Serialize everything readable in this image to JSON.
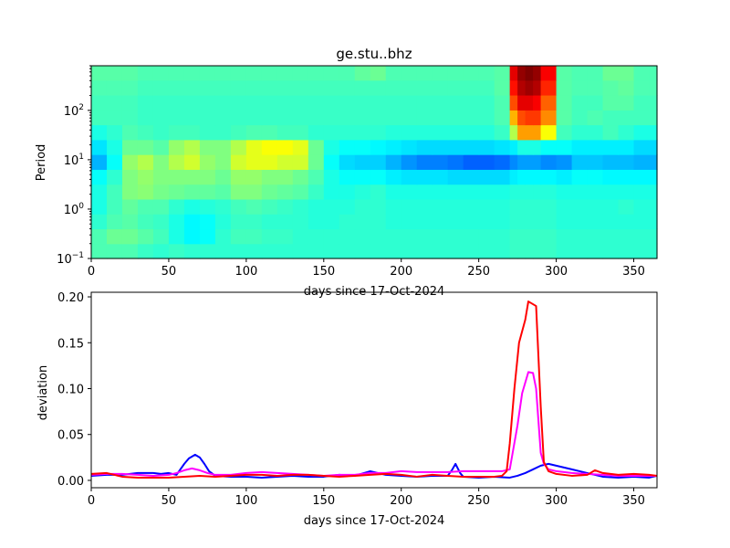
{
  "figure": {
    "title": "ge.stu..bhz",
    "colors": {
      "background": "#ffffff",
      "axis": "#000000"
    }
  },
  "chart_data": [
    {
      "type": "heatmap",
      "title": "ge.stu..bhz",
      "xlabel": "days since 17-Oct-2024",
      "ylabel": "Period",
      "xlim": [
        0,
        365
      ],
      "ylim": [
        0.1,
        800
      ],
      "yscale": "log",
      "colormap": "jet",
      "grid": false,
      "x_ticks": [
        0,
        50,
        100,
        150,
        200,
        250,
        300,
        350
      ],
      "x_tick_labels": [
        "0",
        "50",
        "100",
        "150",
        "200",
        "250",
        "300",
        "350"
      ],
      "y_ticks": [
        0.1,
        1,
        10,
        100
      ],
      "y_tick_labels": [
        {
          "base": "10",
          "exp": "−1"
        },
        {
          "base": "10",
          "exp": "0"
        },
        {
          "base": "10",
          "exp": "1"
        },
        {
          "base": "10",
          "exp": "2"
        }
      ],
      "x_days": [
        0,
        10,
        20,
        30,
        40,
        50,
        60,
        70,
        80,
        90,
        100,
        110,
        120,
        130,
        140,
        150,
        160,
        170,
        180,
        190,
        200,
        210,
        220,
        230,
        240,
        250,
        260,
        270,
        275,
        280,
        285,
        290,
        300,
        310,
        320,
        330,
        340,
        350,
        360,
        365
      ],
      "period_bins": [
        0.1,
        0.2,
        0.4,
        0.8,
        1.6,
        3.2,
        6.4,
        12.8,
        25.6,
        51.2,
        102,
        205,
        410,
        800
      ],
      "values": [
        [
          0.45,
          0.45,
          0.45,
          0.43,
          0.42,
          0.43,
          0.42,
          0.42,
          0.42,
          0.42,
          0.42,
          0.42,
          0.42,
          0.42,
          0.42,
          0.42,
          0.42,
          0.42,
          0.42,
          0.42,
          0.42,
          0.42,
          0.42,
          0.42,
          0.42,
          0.42,
          0.42,
          0.43,
          0.43,
          0.43,
          0.43,
          0.43,
          0.42,
          0.42,
          0.42,
          0.42,
          0.42,
          0.42,
          0.42,
          0.42
        ],
        [
          0.45,
          0.48,
          0.48,
          0.46,
          0.44,
          0.4,
          0.37,
          0.38,
          0.42,
          0.44,
          0.44,
          0.43,
          0.43,
          0.42,
          0.42,
          0.42,
          0.42,
          0.42,
          0.42,
          0.42,
          0.42,
          0.42,
          0.42,
          0.42,
          0.42,
          0.42,
          0.42,
          0.43,
          0.43,
          0.43,
          0.43,
          0.43,
          0.42,
          0.42,
          0.42,
          0.42,
          0.42,
          0.42,
          0.42,
          0.42
        ],
        [
          0.42,
          0.45,
          0.46,
          0.44,
          0.43,
          0.4,
          0.37,
          0.38,
          0.41,
          0.43,
          0.43,
          0.42,
          0.42,
          0.42,
          0.41,
          0.41,
          0.42,
          0.42,
          0.42,
          0.41,
          0.41,
          0.41,
          0.41,
          0.41,
          0.41,
          0.41,
          0.41,
          0.42,
          0.42,
          0.42,
          0.42,
          0.42,
          0.41,
          0.41,
          0.41,
          0.41,
          0.41,
          0.41,
          0.41,
          0.41
        ],
        [
          0.4,
          0.44,
          0.47,
          0.45,
          0.45,
          0.42,
          0.4,
          0.41,
          0.42,
          0.44,
          0.45,
          0.44,
          0.43,
          0.42,
          0.41,
          0.41,
          0.41,
          0.42,
          0.42,
          0.41,
          0.41,
          0.41,
          0.41,
          0.41,
          0.41,
          0.41,
          0.41,
          0.42,
          0.42,
          0.42,
          0.42,
          0.42,
          0.41,
          0.41,
          0.41,
          0.41,
          0.42,
          0.41,
          0.41,
          0.41
        ],
        [
          0.4,
          0.44,
          0.5,
          0.51,
          0.49,
          0.48,
          0.47,
          0.47,
          0.46,
          0.5,
          0.5,
          0.48,
          0.47,
          0.46,
          0.43,
          0.4,
          0.4,
          0.41,
          0.42,
          0.4,
          0.4,
          0.4,
          0.4,
          0.4,
          0.4,
          0.4,
          0.4,
          0.41,
          0.41,
          0.41,
          0.41,
          0.41,
          0.4,
          0.4,
          0.4,
          0.4,
          0.4,
          0.4,
          0.4,
          0.4
        ],
        [
          0.38,
          0.42,
          0.5,
          0.52,
          0.5,
          0.5,
          0.5,
          0.5,
          0.48,
          0.52,
          0.52,
          0.5,
          0.5,
          0.48,
          0.45,
          0.4,
          0.38,
          0.38,
          0.38,
          0.36,
          0.35,
          0.35,
          0.35,
          0.34,
          0.34,
          0.34,
          0.34,
          0.36,
          0.37,
          0.37,
          0.37,
          0.37,
          0.36,
          0.38,
          0.38,
          0.37,
          0.37,
          0.37,
          0.37,
          0.37
        ],
        [
          0.3,
          0.38,
          0.52,
          0.55,
          0.5,
          0.55,
          0.58,
          0.52,
          0.5,
          0.58,
          0.6,
          0.6,
          0.58,
          0.58,
          0.48,
          0.38,
          0.34,
          0.33,
          0.33,
          0.3,
          0.27,
          0.25,
          0.25,
          0.24,
          0.22,
          0.22,
          0.23,
          0.26,
          0.28,
          0.28,
          0.28,
          0.26,
          0.27,
          0.32,
          0.32,
          0.31,
          0.31,
          0.3,
          0.3,
          0.3
        ],
        [
          0.35,
          0.4,
          0.48,
          0.48,
          0.46,
          0.52,
          0.55,
          0.5,
          0.5,
          0.55,
          0.6,
          0.62,
          0.62,
          0.6,
          0.48,
          0.4,
          0.38,
          0.38,
          0.37,
          0.36,
          0.35,
          0.34,
          0.34,
          0.34,
          0.34,
          0.34,
          0.35,
          0.36,
          0.4,
          0.4,
          0.4,
          0.38,
          0.38,
          0.36,
          0.36,
          0.36,
          0.36,
          0.34,
          0.34,
          0.35
        ],
        [
          0.4,
          0.42,
          0.45,
          0.44,
          0.43,
          0.44,
          0.44,
          0.43,
          0.43,
          0.44,
          0.45,
          0.45,
          0.44,
          0.44,
          0.42,
          0.42,
          0.42,
          0.42,
          0.42,
          0.41,
          0.41,
          0.41,
          0.41,
          0.41,
          0.41,
          0.41,
          0.43,
          0.55,
          0.72,
          0.72,
          0.72,
          0.62,
          0.44,
          0.42,
          0.42,
          0.44,
          0.42,
          0.4,
          0.4,
          0.4
        ],
        [
          0.44,
          0.44,
          0.44,
          0.43,
          0.43,
          0.43,
          0.43,
          0.43,
          0.43,
          0.43,
          0.43,
          0.43,
          0.43,
          0.43,
          0.43,
          0.43,
          0.43,
          0.43,
          0.43,
          0.43,
          0.43,
          0.43,
          0.43,
          0.43,
          0.43,
          0.43,
          0.45,
          0.7,
          0.8,
          0.82,
          0.82,
          0.74,
          0.46,
          0.44,
          0.45,
          0.44,
          0.44,
          0.44,
          0.44,
          0.44
        ],
        [
          0.44,
          0.44,
          0.44,
          0.43,
          0.43,
          0.43,
          0.43,
          0.43,
          0.43,
          0.43,
          0.43,
          0.43,
          0.43,
          0.43,
          0.43,
          0.43,
          0.43,
          0.43,
          0.43,
          0.43,
          0.43,
          0.43,
          0.43,
          0.43,
          0.43,
          0.43,
          0.45,
          0.8,
          0.9,
          0.9,
          0.88,
          0.78,
          0.46,
          0.44,
          0.44,
          0.46,
          0.46,
          0.44,
          0.44,
          0.44
        ],
        [
          0.45,
          0.45,
          0.45,
          0.44,
          0.44,
          0.44,
          0.44,
          0.44,
          0.44,
          0.44,
          0.44,
          0.44,
          0.44,
          0.44,
          0.44,
          0.44,
          0.44,
          0.44,
          0.44,
          0.44,
          0.44,
          0.44,
          0.44,
          0.44,
          0.44,
          0.44,
          0.46,
          0.86,
          0.95,
          0.97,
          0.95,
          0.84,
          0.46,
          0.45,
          0.45,
          0.46,
          0.47,
          0.45,
          0.45,
          0.45
        ],
        [
          0.46,
          0.46,
          0.46,
          0.45,
          0.45,
          0.45,
          0.45,
          0.45,
          0.45,
          0.45,
          0.45,
          0.45,
          0.45,
          0.45,
          0.45,
          0.45,
          0.45,
          0.47,
          0.48,
          0.45,
          0.45,
          0.45,
          0.45,
          0.45,
          0.45,
          0.45,
          0.46,
          0.9,
          0.98,
          1.0,
          0.98,
          0.88,
          0.46,
          0.45,
          0.45,
          0.48,
          0.48,
          0.45,
          0.45,
          0.45
        ],
        [
          0.46,
          0.46,
          0.46,
          0.45,
          0.45,
          0.45,
          0.45,
          0.45,
          0.45,
          0.45,
          0.45,
          0.45,
          0.45,
          0.45,
          0.45,
          0.45,
          0.45,
          0.47,
          0.47,
          0.45,
          0.45,
          0.45,
          0.45,
          0.45,
          0.45,
          0.45,
          0.46,
          0.9,
          0.98,
          1.0,
          0.98,
          0.88,
          0.46,
          0.45,
          0.45,
          0.48,
          0.48,
          0.45,
          0.45,
          0.45
        ]
      ]
    },
    {
      "type": "line",
      "title": "",
      "xlabel": "days since 17-Oct-2024",
      "ylabel": "deviation",
      "xlim": [
        0,
        365
      ],
      "ylim": [
        -0.008,
        0.205
      ],
      "grid": false,
      "x_ticks": [
        0,
        50,
        100,
        150,
        200,
        250,
        300,
        350
      ],
      "x_tick_labels": [
        "0",
        "50",
        "100",
        "150",
        "200",
        "250",
        "300",
        "350"
      ],
      "y_ticks": [
        0,
        0.05,
        0.1,
        0.15,
        0.2
      ],
      "y_tick_labels": [
        "0.00",
        "0.05",
        "0.10",
        "0.15",
        "0.20"
      ],
      "series": [
        {
          "color": "#0000ff",
          "x": [
            0,
            10,
            20,
            25,
            30,
            40,
            45,
            50,
            55,
            60,
            63,
            67,
            70,
            73,
            76,
            80,
            90,
            100,
            110,
            120,
            130,
            140,
            150,
            160,
            170,
            180,
            190,
            200,
            210,
            220,
            230,
            233,
            235,
            238,
            240,
            250,
            260,
            270,
            275,
            280,
            285,
            290,
            295,
            300,
            310,
            320,
            330,
            340,
            350,
            360,
            365
          ],
          "y": [
            0.005,
            0.006,
            0.006,
            0.007,
            0.008,
            0.008,
            0.007,
            0.008,
            0.006,
            0.018,
            0.024,
            0.028,
            0.025,
            0.018,
            0.01,
            0.005,
            0.004,
            0.004,
            0.003,
            0.004,
            0.005,
            0.004,
            0.004,
            0.006,
            0.005,
            0.01,
            0.006,
            0.005,
            0.004,
            0.005,
            0.005,
            0.012,
            0.018,
            0.008,
            0.004,
            0.003,
            0.004,
            0.003,
            0.005,
            0.008,
            0.012,
            0.016,
            0.018,
            0.016,
            0.012,
            0.008,
            0.004,
            0.003,
            0.004,
            0.003,
            0.005
          ]
        },
        {
          "color": "#ff00ff",
          "x": [
            0,
            10,
            20,
            30,
            40,
            50,
            55,
            60,
            65,
            70,
            75,
            80,
            90,
            100,
            110,
            120,
            130,
            140,
            150,
            160,
            170,
            180,
            190,
            200,
            210,
            220,
            230,
            240,
            250,
            260,
            265,
            270,
            275,
            278,
            282,
            285,
            287,
            290,
            292,
            295,
            300,
            310,
            320,
            330,
            340,
            350,
            360,
            365
          ],
          "y": [
            0.006,
            0.007,
            0.007,
            0.006,
            0.005,
            0.006,
            0.008,
            0.011,
            0.013,
            0.011,
            0.008,
            0.006,
            0.006,
            0.008,
            0.009,
            0.008,
            0.007,
            0.006,
            0.005,
            0.006,
            0.006,
            0.008,
            0.008,
            0.01,
            0.009,
            0.009,
            0.009,
            0.01,
            0.01,
            0.01,
            0.01,
            0.012,
            0.06,
            0.095,
            0.118,
            0.117,
            0.1,
            0.03,
            0.018,
            0.012,
            0.01,
            0.008,
            0.007,
            0.006,
            0.005,
            0.005,
            0.005,
            0.005
          ]
        },
        {
          "color": "#ff0000",
          "x": [
            0,
            10,
            15,
            20,
            30,
            40,
            50,
            60,
            70,
            80,
            90,
            100,
            110,
            120,
            130,
            140,
            150,
            160,
            170,
            180,
            190,
            200,
            210,
            220,
            230,
            240,
            250,
            260,
            265,
            268,
            270,
            273,
            276,
            280,
            282,
            285,
            287,
            290,
            292,
            295,
            300,
            310,
            320,
            325,
            330,
            340,
            350,
            360,
            365
          ],
          "y": [
            0.007,
            0.008,
            0.006,
            0.004,
            0.003,
            0.003,
            0.003,
            0.004,
            0.005,
            0.004,
            0.005,
            0.006,
            0.006,
            0.005,
            0.006,
            0.006,
            0.005,
            0.004,
            0.005,
            0.006,
            0.007,
            0.006,
            0.004,
            0.006,
            0.005,
            0.004,
            0.004,
            0.004,
            0.005,
            0.01,
            0.04,
            0.1,
            0.15,
            0.175,
            0.195,
            0.192,
            0.19,
            0.08,
            0.02,
            0.01,
            0.007,
            0.005,
            0.006,
            0.011,
            0.008,
            0.006,
            0.007,
            0.006,
            0.005
          ]
        }
      ]
    }
  ]
}
